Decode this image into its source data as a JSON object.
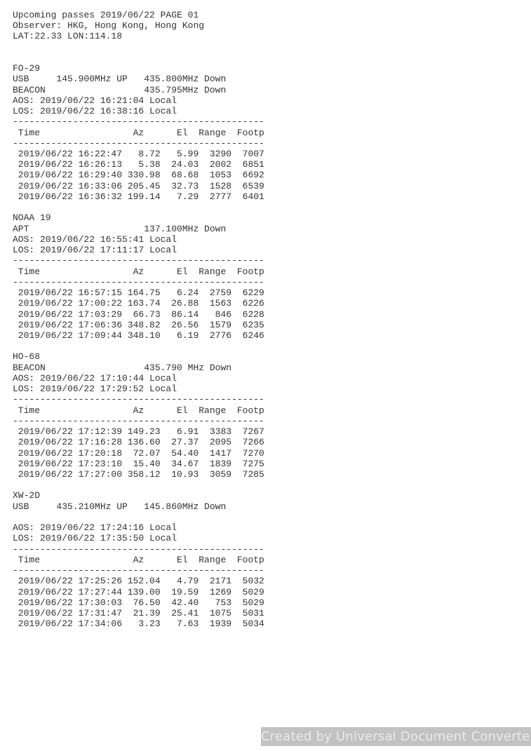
{
  "page": {
    "title_line": "Upcoming passes 2019/06/22 PAGE 01",
    "observer_line": "Observer: HKG, Hong Kong, Hong Kong",
    "coords_line": "LAT:22.33 LON:114.18"
  },
  "labels": {
    "aos": "AOS:",
    "los": "LOS:"
  },
  "table_header": {
    "time": "Time",
    "az": "Az",
    "el": "El",
    "range": "Range",
    "footp": "Footp"
  },
  "separator": {
    "char": "-",
    "count": 46
  },
  "sections": [
    {
      "name": "FO-29",
      "radios": [
        {
          "mode": "USB",
          "uplink": "145.900MHz UP",
          "downlink": "435.800MHz Down"
        },
        {
          "mode": "BEACON",
          "uplink": "",
          "downlink": "435.795MHz Down"
        }
      ],
      "blank_after_radios": false,
      "aos": "2019/06/22 16:21:04 Local",
      "los": "2019/06/22 16:38:16 Local",
      "passes": [
        {
          "time": "2019/06/22 16:22:47",
          "az": "8.72",
          "el": "5.99",
          "range": "3290",
          "footp": "7007"
        },
        {
          "time": "2019/06/22 16:26:13",
          "az": "5.38",
          "el": "24.03",
          "range": "2002",
          "footp": "6851"
        },
        {
          "time": "2019/06/22 16:29:40",
          "az": "330.98",
          "el": "68.68",
          "range": "1053",
          "footp": "6692"
        },
        {
          "time": "2019/06/22 16:33:06",
          "az": "205.45",
          "el": "32.73",
          "range": "1528",
          "footp": "6539"
        },
        {
          "time": "2019/06/22 16:36:32",
          "az": "199.14",
          "el": "7.29",
          "range": "2777",
          "footp": "6401"
        }
      ]
    },
    {
      "name": "NOAA 19",
      "radios": [
        {
          "mode": "APT",
          "uplink": "",
          "downlink": "137.100MHz Down"
        }
      ],
      "blank_after_radios": false,
      "aos": "2019/06/22 16:55:41 Local",
      "los": "2019/06/22 17:11:17 Local",
      "passes": [
        {
          "time": "2019/06/22 16:57:15",
          "az": "164.75",
          "el": "6.24",
          "range": "2759",
          "footp": "6229"
        },
        {
          "time": "2019/06/22 17:00:22",
          "az": "163.74",
          "el": "26.88",
          "range": "1563",
          "footp": "6226"
        },
        {
          "time": "2019/06/22 17:03:29",
          "az": "66.73",
          "el": "86.14",
          "range": "846",
          "footp": "6228"
        },
        {
          "time": "2019/06/22 17:06:36",
          "az": "348.82",
          "el": "26.56",
          "range": "1579",
          "footp": "6235"
        },
        {
          "time": "2019/06/22 17:09:44",
          "az": "348.10",
          "el": "6.19",
          "range": "2776",
          "footp": "6246"
        }
      ]
    },
    {
      "name": "HO-68",
      "radios": [
        {
          "mode": "BEACON",
          "uplink": "",
          "downlink": "435.790 MHz Down"
        }
      ],
      "blank_after_radios": false,
      "aos": "2019/06/22 17:10:44 Local",
      "los": "2019/06/22 17:29:52 Local",
      "passes": [
        {
          "time": "2019/06/22 17:12:39",
          "az": "149.23",
          "el": "6.91",
          "range": "3383",
          "footp": "7267"
        },
        {
          "time": "2019/06/22 17:16:28",
          "az": "136.60",
          "el": "27.37",
          "range": "2095",
          "footp": "7266"
        },
        {
          "time": "2019/06/22 17:20:18",
          "az": "72.07",
          "el": "54.40",
          "range": "1417",
          "footp": "7270"
        },
        {
          "time": "2019/06/22 17:23:10",
          "az": "15.40",
          "el": "34.67",
          "range": "1839",
          "footp": "7275"
        },
        {
          "time": "2019/06/22 17:27:00",
          "az": "358.12",
          "el": "10.93",
          "range": "3059",
          "footp": "7285"
        }
      ]
    },
    {
      "name": "XW-2D",
      "radios": [
        {
          "mode": "USB",
          "uplink": "435.210MHz UP",
          "downlink": "145.860MHz Down"
        }
      ],
      "blank_after_radios": true,
      "aos": "2019/06/22 17:24:16 Local",
      "los": "2019/06/22 17:35:50 Local",
      "passes": [
        {
          "time": "2019/06/22 17:25:26",
          "az": "152.04",
          "el": "4.79",
          "range": "2171",
          "footp": "5032"
        },
        {
          "time": "2019/06/22 17:27:44",
          "az": "139.00",
          "el": "19.59",
          "range": "1269",
          "footp": "5029"
        },
        {
          "time": "2019/06/22 17:30:03",
          "az": "76.50",
          "el": "42.40",
          "range": "753",
          "footp": "5029"
        },
        {
          "time": "2019/06/22 17:31:47",
          "az": "21.39",
          "el": "25.41",
          "range": "1075",
          "footp": "5031"
        },
        {
          "time": "2019/06/22 17:34:06",
          "az": "3.23",
          "el": "7.63",
          "range": "1939",
          "footp": "5034"
        }
      ]
    }
  ],
  "watermark": {
    "text": "Created by Universal Document Converter",
    "bg_color": "#c2c2c2",
    "text_color": "#ebebeb"
  },
  "colors": {
    "text": "#333333",
    "page_bg": "#ffffff"
  }
}
